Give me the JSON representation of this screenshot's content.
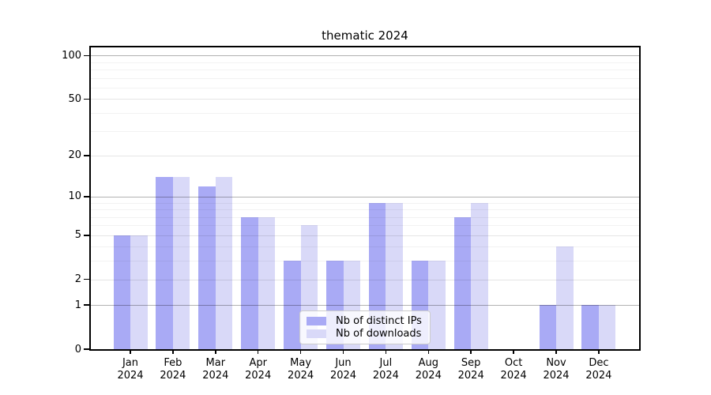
{
  "chart_data": {
    "type": "bar",
    "title": "thematic 2024",
    "categories": [
      "Jan",
      "Feb",
      "Mar",
      "Apr",
      "May",
      "Jun",
      "Jul",
      "Aug",
      "Sep",
      "Oct",
      "Nov",
      "Dec"
    ],
    "year_label": "2024",
    "series": [
      {
        "name": "Nb of distinct IPs",
        "color": "#a9aaf5",
        "values": [
          5,
          14,
          12,
          7,
          3,
          3,
          9,
          3,
          7,
          0,
          1,
          1
        ]
      },
      {
        "name": "Nb of downloads",
        "color": "#d9d9f8",
        "values": [
          5,
          14,
          14,
          7,
          6,
          3,
          9,
          3,
          9,
          0,
          4,
          1
        ]
      }
    ],
    "xlabel": "",
    "ylabel": "",
    "yscale": "symlog",
    "ylim": [
      0,
      114
    ],
    "yticks": [
      0,
      1,
      2,
      5,
      10,
      20,
      50,
      100
    ],
    "grid_major_lines": [
      1,
      10,
      100
    ],
    "grid_mid_lines": [
      2,
      5,
      20,
      50
    ],
    "grid_minor_lines": [
      3,
      4,
      6,
      7,
      8,
      9,
      30,
      40,
      60,
      70,
      80,
      90
    ],
    "grid": "on",
    "legend_position": "bottom-center"
  }
}
